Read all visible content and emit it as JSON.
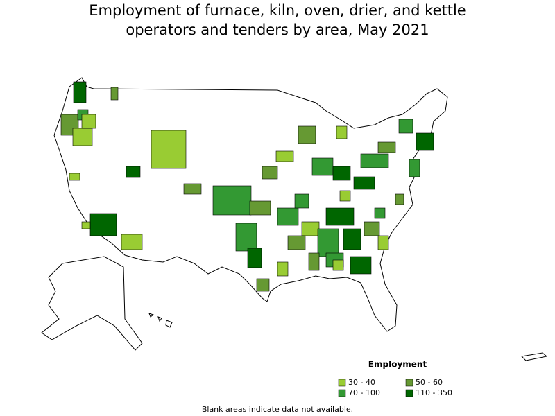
{
  "title_lines": [
    "Employment of furnace, kiln, oven, drier, and kettle",
    "operators and tenders by area, May 2021"
  ],
  "legend": {
    "title": "Employment",
    "items": [
      {
        "label": "30 - 40",
        "color": "#99cc33"
      },
      {
        "label": "50 - 60",
        "color": "#669933"
      },
      {
        "label": "70 - 100",
        "color": "#339933"
      },
      {
        "label": "110 - 350",
        "color": "#006600"
      }
    ]
  },
  "footnote": "Blank areas indicate data not available."
}
